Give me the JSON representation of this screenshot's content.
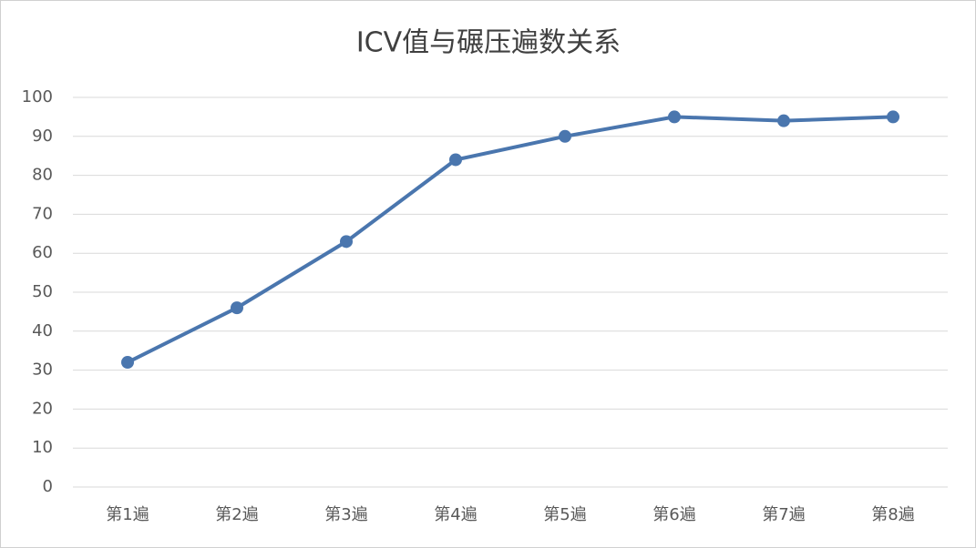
{
  "chart_data": {
    "type": "line",
    "title": "ICV值与碾压遍数关系",
    "categories": [
      "第1遍",
      "第2遍",
      "第3遍",
      "第4遍",
      "第5遍",
      "第6遍",
      "第7遍",
      "第8遍"
    ],
    "values": [
      32,
      46,
      63,
      84,
      90,
      95,
      94,
      95
    ],
    "color": "#4a76ae",
    "ylim": [
      0,
      100
    ],
    "yticks": [
      0,
      10,
      20,
      30,
      40,
      50,
      60,
      70,
      80,
      90,
      100
    ],
    "grid": true
  }
}
